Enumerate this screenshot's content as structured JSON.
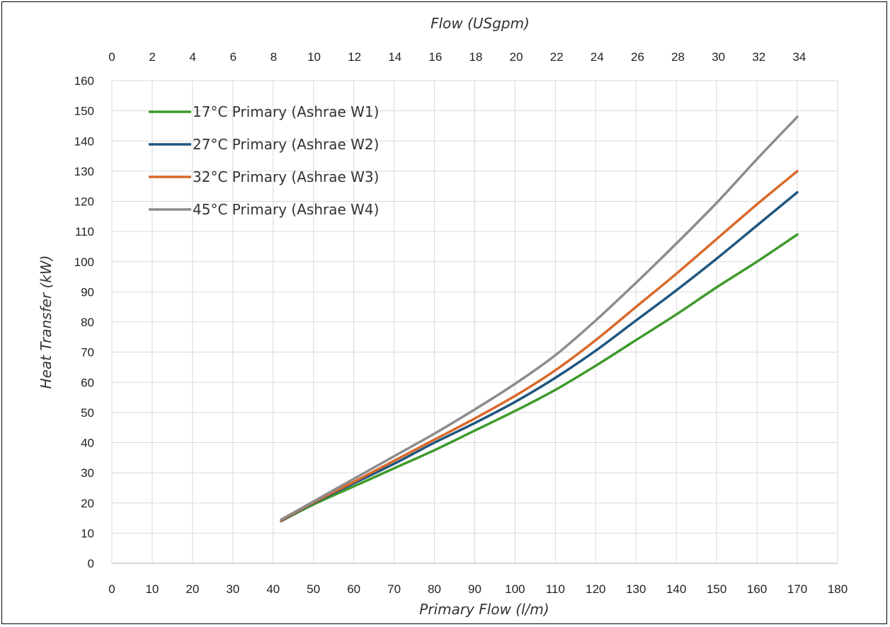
{
  "chart_data": {
    "type": "line",
    "title": "",
    "xlabel": "Primary Flow (l/m)",
    "ylabel": "Heat Transfer (kW)",
    "x2label": "Flow (USgpm)",
    "xlim": [
      0,
      180
    ],
    "ylim": [
      0,
      160
    ],
    "x2lim": [
      0,
      34
    ],
    "x_ticks": [
      "0",
      "10",
      "20",
      "30",
      "40",
      "50",
      "60",
      "70",
      "80",
      "90",
      "100",
      "110",
      "120",
      "130",
      "140",
      "150",
      "160",
      "170",
      "180"
    ],
    "y_ticks": [
      "0",
      "10",
      "20",
      "30",
      "40",
      "50",
      "60",
      "70",
      "80",
      "90",
      "100",
      "110",
      "120",
      "130",
      "140",
      "150",
      "160"
    ],
    "x2_ticks": [
      "0",
      "2",
      "4",
      "6",
      "8",
      "10",
      "12",
      "14",
      "16",
      "18",
      "20",
      "22",
      "24",
      "26",
      "28",
      "30",
      "32",
      "34"
    ],
    "grid": true,
    "legend_position": "top-left",
    "x": [
      42,
      50,
      60,
      70,
      80,
      90,
      100,
      110,
      120,
      130,
      140,
      150,
      160,
      170
    ],
    "series": [
      {
        "name": "17°C Primary (Ashrae W1)",
        "color": "#3f9a2c",
        "values": [
          14,
          19.5,
          25.5,
          31.5,
          37.5,
          44,
          50.5,
          57.5,
          65.5,
          74,
          82.5,
          91.5,
          100,
          109
        ]
      },
      {
        "name": "27°C Primary (Ashrae W2)",
        "color": "#1f5680",
        "values": [
          14,
          20,
          26.5,
          33,
          40,
          46.5,
          53.5,
          61.5,
          70.5,
          80.5,
          90.5,
          101,
          112,
          123
        ]
      },
      {
        "name": "32°C Primary (Ashrae W3)",
        "color": "#d9692a",
        "values": [
          14.2,
          20.2,
          27,
          34,
          41,
          48,
          55.5,
          64,
          74,
          85,
          96,
          107.5,
          119,
          130
        ]
      },
      {
        "name": "45°C Primary (Ashrae W4)",
        "color": "#8c8c8c",
        "values": [
          14.5,
          20.5,
          28,
          35.5,
          43,
          51,
          59.5,
          69,
          80.5,
          93,
          106,
          119.5,
          134,
          148
        ]
      }
    ]
  }
}
